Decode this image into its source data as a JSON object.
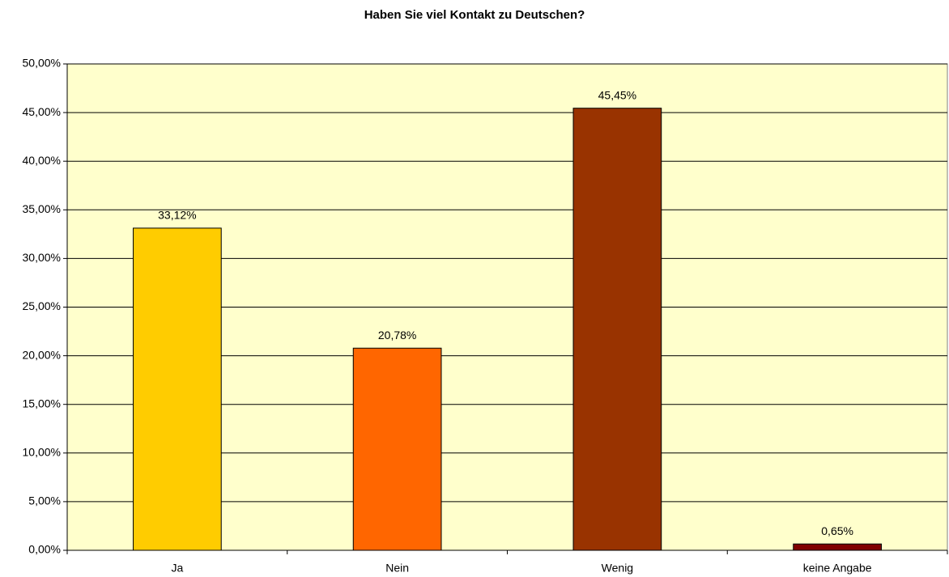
{
  "chart_data": {
    "type": "bar",
    "title": "Haben Sie viel Kontakt zu Deutschen?",
    "categories": [
      "Ja",
      "Nein",
      "Wenig",
      "keine Angabe"
    ],
    "values": [
      33.12,
      20.78,
      45.45,
      0.65
    ],
    "value_labels": [
      "33,12%",
      "20,78%",
      "45,45%",
      "0,65%"
    ],
    "colors": [
      "#ffcc00",
      "#ff6600",
      "#993300",
      "#800000"
    ],
    "ylim": [
      0,
      50
    ],
    "yticks": [
      {
        "value": 0,
        "label": "0,00%"
      },
      {
        "value": 5,
        "label": "5,00%"
      },
      {
        "value": 10,
        "label": "10,00%"
      },
      {
        "value": 15,
        "label": "15,00%"
      },
      {
        "value": 20,
        "label": "20,00%"
      },
      {
        "value": 25,
        "label": "25,00%"
      },
      {
        "value": 30,
        "label": "30,00%"
      },
      {
        "value": 35,
        "label": "35,00%"
      },
      {
        "value": 40,
        "label": "40,00%"
      },
      {
        "value": 45,
        "label": "45,00%"
      },
      {
        "value": 50,
        "label": "50,00%"
      }
    ],
    "grid": true
  }
}
